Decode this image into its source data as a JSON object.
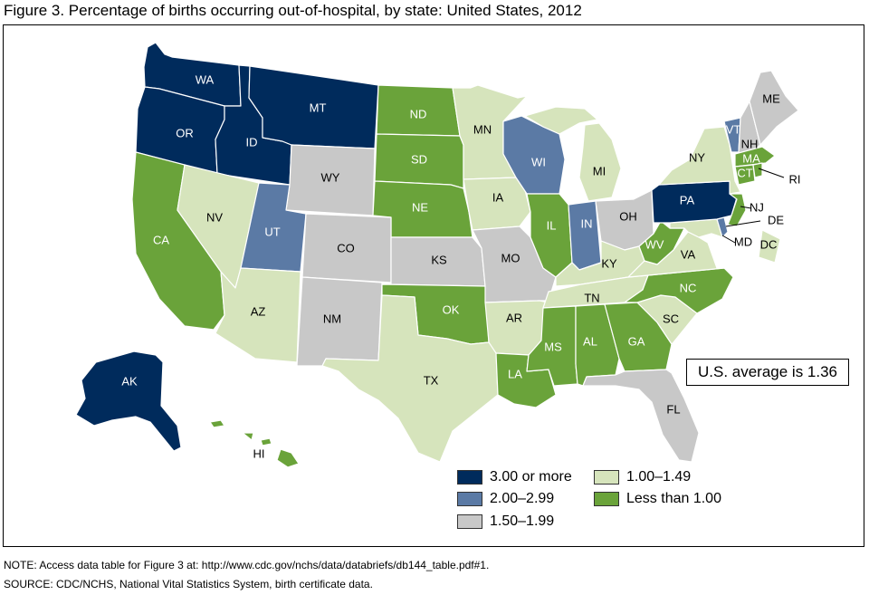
{
  "title": "Figure 3. Percentage of births occurring out-of-hospital, by state: United States, 2012",
  "average_box": "U.S. average is 1.36",
  "note": "NOTE:  Access data table for Figure 3 at: http://www.cdc.gov/nchs/data/databriefs/db144_table.pdf#1.",
  "source": "SOURCE: CDC/NCHS, National Vital Statistics System, birth certificate data.",
  "colors": {
    "c1": "#002b5c",
    "c2": "#5b7aa5",
    "c3": "#c8c8c8",
    "c4": "#d6e4bc",
    "c5": "#6aa33a"
  },
  "legend": [
    {
      "key": "c1",
      "label": "3.00 or more"
    },
    {
      "key": "c2",
      "label": "2.00–2.99"
    },
    {
      "key": "c3",
      "label": "1.50–1.99"
    },
    {
      "key": "c4",
      "label": "1.00–1.49"
    },
    {
      "key": "c5",
      "label": "Less than 1.00"
    }
  ],
  "states": {
    "WA": "c1",
    "OR": "c1",
    "ID": "c1",
    "MT": "c1",
    "AK": "c1",
    "PA": "c1",
    "UT": "c2",
    "WI": "c2",
    "IN": "c2",
    "VT": "c2",
    "DE": "c2",
    "WY": "c3",
    "CO": "c3",
    "NM": "c3",
    "KS": "c3",
    "MO": "c3",
    "OH": "c3",
    "FL": "c3",
    "ME": "c3",
    "NH": "c3",
    "NV": "c4",
    "AZ": "c4",
    "TX": "c4",
    "MN": "c4",
    "IA": "c4",
    "MI": "c4",
    "AR": "c4",
    "KY": "c4",
    "TN": "c4",
    "VA": "c4",
    "SC": "c4",
    "NY": "c4",
    "MD": "c4",
    "DC": "c4",
    "CA": "c5",
    "ND": "c5",
    "SD": "c5",
    "NE": "c5",
    "OK": "c5",
    "IL": "c5",
    "LA": "c5",
    "MS": "c5",
    "AL": "c5",
    "GA": "c5",
    "NC": "c5",
    "WV": "c5",
    "NJ": "c5",
    "CT": "c5",
    "MA": "c5",
    "RI": "c5",
    "HI": "c5"
  },
  "labels": {
    "WA": "WA",
    "OR": "OR",
    "ID": "ID",
    "MT": "MT",
    "ND": "ND",
    "SD": "SD",
    "MN": "MN",
    "WY": "WY",
    "NE": "NE",
    "IA": "IA",
    "WI": "WI",
    "MI": "MI",
    "NV": "NV",
    "UT": "UT",
    "CO": "CO",
    "KS": "KS",
    "MO": "MO",
    "IL": "IL",
    "IN": "IN",
    "OH": "OH",
    "PA": "PA",
    "NY": "NY",
    "CA": "CA",
    "AZ": "AZ",
    "NM": "NM",
    "OK": "OK",
    "AR": "AR",
    "TN": "TN",
    "KY": "KY",
    "WV": "WV",
    "VA": "VA",
    "NC": "NC",
    "SC": "SC",
    "GA": "GA",
    "AL": "AL",
    "MS": "MS",
    "LA": "LA",
    "TX": "TX",
    "FL": "FL",
    "ME": "ME",
    "VT": "VT",
    "NH": "NH",
    "MA": "MA",
    "CT": "CT",
    "RI": "RI",
    "NJ": "NJ",
    "DE": "DE",
    "MD": "MD",
    "DC": "DC",
    "AK": "AK",
    "HI": "HI"
  }
}
